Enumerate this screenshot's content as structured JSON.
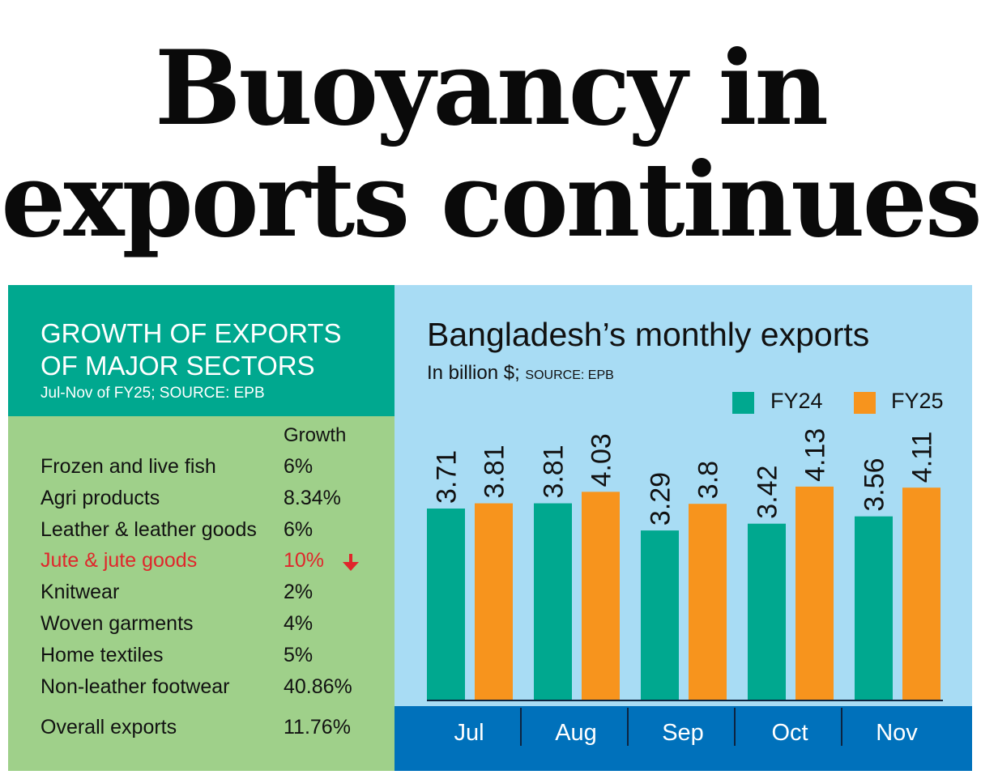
{
  "headline": {
    "line1": "Buoyancy in",
    "line2": "exports continues"
  },
  "sectors": {
    "title_line1": "GROWTH OF EXPORTS",
    "title_line2": "OF MAJOR SECTORS",
    "subtitle": "Jul-Nov of FY25; SOURCE: EPB",
    "column_header": "Growth",
    "rows": [
      {
        "name": "Frozen and live fish",
        "value": "6%"
      },
      {
        "name": "Agri products",
        "value": "8.34%"
      },
      {
        "name": "Leather & leather goods",
        "value": "6%"
      },
      {
        "name": "Jute & jute goods",
        "value": "10%",
        "direction": "down",
        "color": "#e0262b"
      },
      {
        "name": "Knitwear",
        "value": "2%"
      },
      {
        "name": "Woven garments",
        "value": "4%"
      },
      {
        "name": "Home textiles",
        "value": "5%"
      },
      {
        "name": "Non-leather footwear",
        "value": "40.86%"
      },
      {
        "name": "Overall exports",
        "value": "11.76%"
      }
    ]
  },
  "chart_data": {
    "type": "bar",
    "title": "Bangladesh’s monthly exports",
    "subtitle": "In billion $;",
    "source": "SOURCE: EPB",
    "categories": [
      "Jul",
      "Aug",
      "Sep",
      "Oct",
      "Nov"
    ],
    "series": [
      {
        "name": "FY24",
        "color": "#00a88f",
        "values": [
          3.71,
          3.81,
          3.29,
          3.42,
          3.56
        ],
        "labels": [
          "3.71",
          "3.81",
          "3.29",
          "3.42",
          "3.56"
        ]
      },
      {
        "name": "FY25",
        "color": "#f7941d",
        "values": [
          3.81,
          4.03,
          3.8,
          4.13,
          4.11
        ],
        "labels": [
          "3.81",
          "4.03",
          "3.8",
          "4.13",
          "4.11"
        ]
      }
    ],
    "legend_position": "top-right",
    "grid": false,
    "colors": {
      "axis_band": "#0071bb",
      "panel_background": "#a8dcf4"
    }
  }
}
